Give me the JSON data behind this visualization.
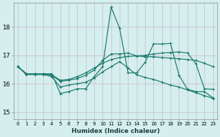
{
  "xlabel": "Humidex (Indice chaleur)",
  "xlim": [
    -0.5,
    23.5
  ],
  "ylim": [
    14.75,
    18.85
  ],
  "yticks": [
    15,
    16,
    17,
    18
  ],
  "xticks": [
    0,
    1,
    2,
    3,
    4,
    5,
    6,
    7,
    8,
    9,
    10,
    11,
    12,
    13,
    14,
    15,
    16,
    17,
    18,
    19,
    20,
    21,
    22,
    23
  ],
  "background_color": "#d5eeee",
  "line_color": "#1a7a6e",
  "grid_color_major": "#c8c0c8",
  "grid_color_minor": "#c8c0c8",
  "line_width": 0.9,
  "marker_size": 2.5,
  "series": [
    {
      "x": [
        0,
        1,
        2,
        3,
        4,
        5,
        6,
        7,
        8,
        9,
        10,
        11,
        12,
        13,
        14,
        15,
        16,
        17,
        18,
        19,
        20,
        21,
        22,
        23
      ],
      "y": [
        16.6,
        16.35,
        16.35,
        16.35,
        16.35,
        15.65,
        15.72,
        15.82,
        15.82,
        16.25,
        16.6,
        18.7,
        17.95,
        16.38,
        16.38,
        16.75,
        17.4,
        17.4,
        17.42,
        16.3,
        15.8,
        15.72,
        15.72,
        15.5
      ]
    },
    {
      "x": [
        0,
        1,
        2,
        3,
        4,
        5,
        6,
        7,
        8,
        9,
        10,
        11,
        12,
        13,
        14,
        15,
        16,
        17,
        18,
        19,
        20,
        21,
        22,
        23
      ],
      "y": [
        16.6,
        16.35,
        16.35,
        16.35,
        16.3,
        16.08,
        16.12,
        16.18,
        16.3,
        16.48,
        16.82,
        17.05,
        17.05,
        17.08,
        16.98,
        16.95,
        16.95,
        16.92,
        16.9,
        16.88,
        16.85,
        16.82,
        16.72,
        16.6
      ]
    },
    {
      "x": [
        0,
        1,
        2,
        3,
        4,
        5,
        6,
        7,
        8,
        9,
        10,
        11,
        12,
        13,
        14,
        15,
        16,
        17,
        18,
        19,
        20,
        21,
        22,
        23
      ],
      "y": [
        16.6,
        16.35,
        16.35,
        16.35,
        16.32,
        16.12,
        16.15,
        16.25,
        16.38,
        16.55,
        16.72,
        16.85,
        16.92,
        16.96,
        16.98,
        17.0,
        17.05,
        17.08,
        17.1,
        17.12,
        17.08,
        16.7,
        15.82,
        15.8
      ]
    },
    {
      "x": [
        0,
        1,
        2,
        3,
        4,
        5,
        6,
        7,
        8,
        9,
        10,
        11,
        12,
        13,
        14,
        15,
        16,
        17,
        18,
        19,
        20,
        21,
        22,
        23
      ],
      "y": [
        16.6,
        16.32,
        16.32,
        16.32,
        16.25,
        15.88,
        15.95,
        16.0,
        16.05,
        16.2,
        16.42,
        16.6,
        16.78,
        16.55,
        16.32,
        16.22,
        16.15,
        16.05,
        15.95,
        15.88,
        15.78,
        15.68,
        15.58,
        15.48
      ]
    }
  ]
}
